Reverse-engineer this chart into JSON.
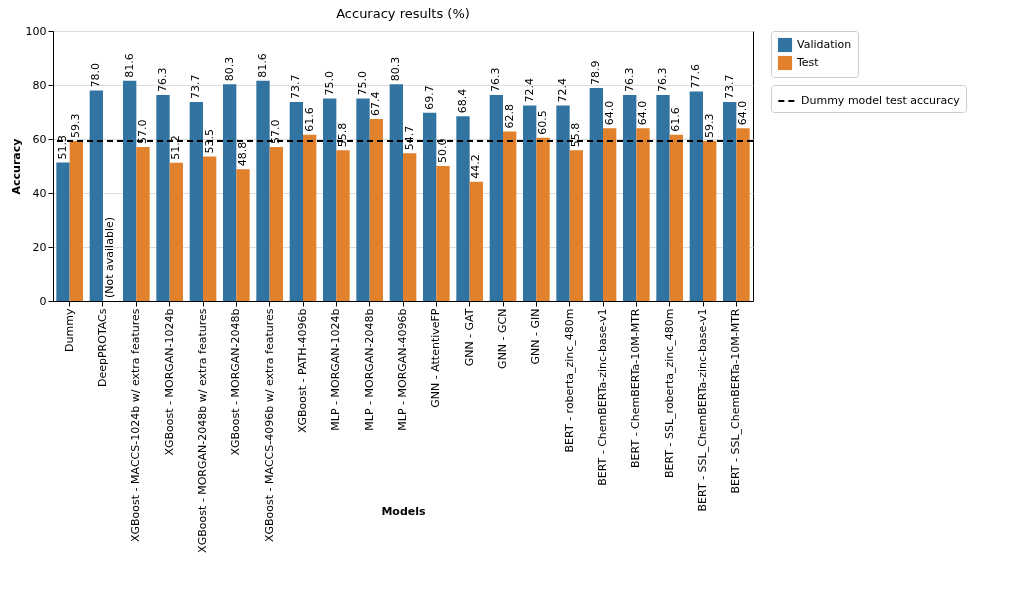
{
  "chart_data": {
    "type": "bar",
    "title": "Accuracy results (%)",
    "xlabel": "Models",
    "ylabel": "Accuracy",
    "categories": [
      "Dummy",
      "DeepPROTACs",
      "XGBoost - MACCS-1024b w/ extra features",
      "XGBoost - MORGAN-1024b",
      "XGBoost - MORGAN-2048b w/ extra features",
      "XGBoost - MORGAN-2048b",
      "XGBoost - MACCS-4096b w/ extra features",
      "XGBoost - PATH-4096b",
      "MLP - MORGAN-1024b",
      "MLP - MORGAN-2048b",
      "MLP - MORGAN-4096b",
      "GNN - AttentiveFP",
      "GNN - GAT",
      "GNN - GCN",
      "GNN - GIN",
      "BERT - roberta_zinc_480m",
      "BERT - ChemBERTa-zinc-base-v1",
      "BERT - ChemBERTa-10M-MTR",
      "BERT - SSL_roberta_zinc_480m",
      "BERT - SSL_ChemBERTa-zinc-base-v1",
      "BERT - SSL_ChemBERTa-10M-MTR"
    ],
    "series": [
      {
        "name": "Validation",
        "color": "#3274a1",
        "values": [
          51.3,
          78.0,
          81.6,
          76.3,
          73.7,
          80.3,
          81.6,
          73.7,
          75.0,
          75.0,
          80.3,
          69.7,
          68.4,
          76.3,
          72.4,
          72.4,
          78.9,
          76.3,
          76.3,
          77.6,
          73.7
        ],
        "value_labels": [
          "51.3",
          "78.0",
          "81.6",
          "76.3",
          "73.7",
          "80.3",
          "81.6",
          "73.7",
          "75.0",
          "75.0",
          "80.3",
          "69.7",
          "68.4",
          "76.3",
          "72.4",
          "72.4",
          "78.9",
          "76.3",
          "76.3",
          "77.6",
          "73.7"
        ]
      },
      {
        "name": "Test",
        "color": "#e1812c",
        "values": [
          59.3,
          0,
          57.0,
          51.2,
          53.5,
          48.8,
          57.0,
          61.6,
          55.8,
          67.4,
          54.7,
          50.0,
          44.2,
          62.8,
          60.5,
          55.8,
          64.0,
          64.0,
          61.6,
          59.3,
          64.0
        ],
        "value_labels": [
          "59.3",
          "(Not available)",
          "57.0",
          "51.2",
          "53.5",
          "48.8",
          "57.0",
          "61.6",
          "55.8",
          "67.4",
          "54.7",
          "50.0",
          "44.2",
          "62.8",
          "60.5",
          "55.8",
          "64.0",
          "64.0",
          "61.6",
          "59.3",
          "64.0"
        ]
      }
    ],
    "ylim": [
      0,
      100
    ],
    "yticks": [
      0,
      20,
      40,
      60,
      80,
      100
    ],
    "grid": "y",
    "legend": "top right",
    "ref_lines": [
      {
        "axis": "y",
        "value": 59.3,
        "label": "Dummy model test accuracy",
        "color": "#000000",
        "line_style": "dashed"
      }
    ]
  }
}
